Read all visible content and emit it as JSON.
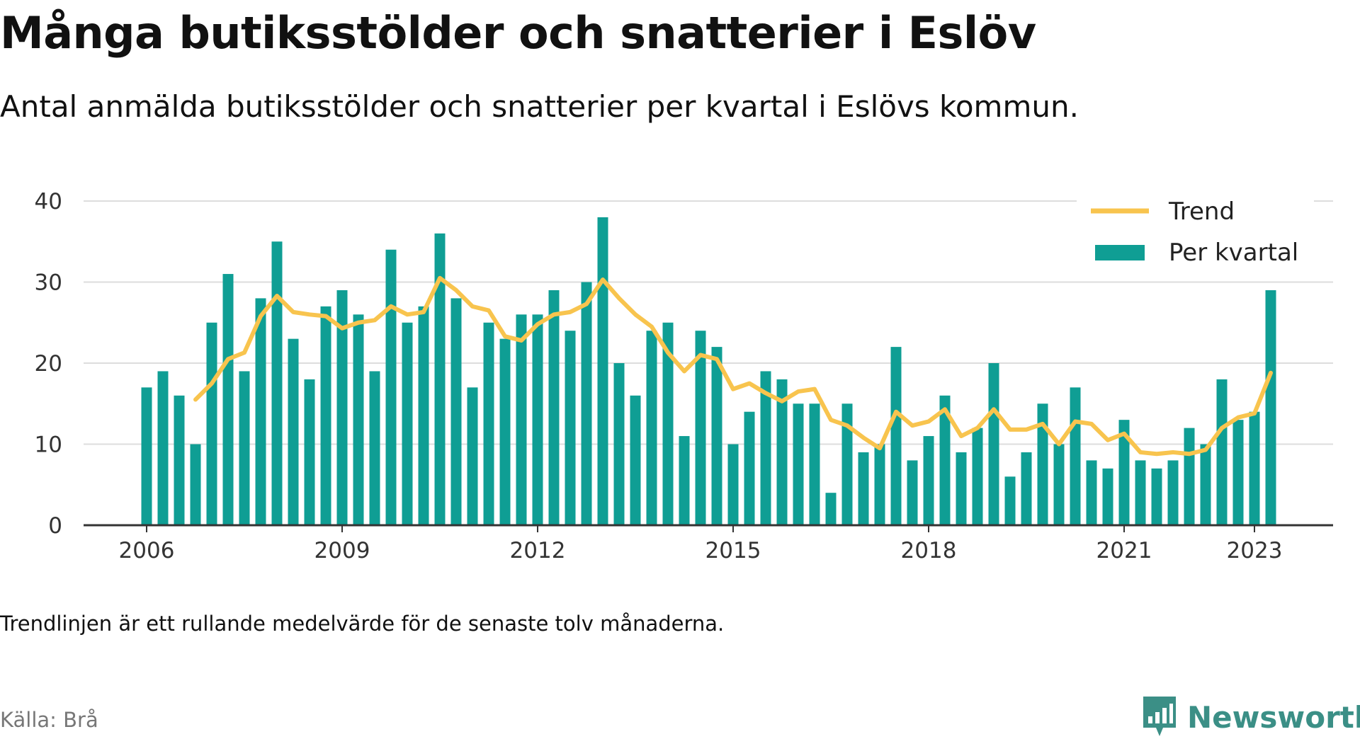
{
  "title": "Många butiksstölder och snatterier i Eslöv",
  "subtitle": "Antal anmälda butiksstölder och snatterier per kvartal i Eslövs kommun.",
  "note": "Trendlinjen är ett rullande medelvärde för de senaste tolv månaderna.",
  "source": "Källa: Brå",
  "logo": {
    "text": "Newsworthy",
    "icon": "bar-chart-icon"
  },
  "colors": {
    "bar": "#0f9e94",
    "trend": "#f8c44e",
    "grid": "#dddddd",
    "axis": "#333333",
    "logo": "#3b8f86"
  },
  "chart_data": {
    "type": "bar",
    "ylim": [
      0,
      40
    ],
    "yticks": [
      0,
      10,
      20,
      30,
      40
    ],
    "xticks": [
      "2006",
      "2009",
      "2012",
      "2015",
      "2018",
      "2021",
      "2023"
    ],
    "grid": true,
    "legend_position": "top-right",
    "legend": [
      {
        "label": "Trend",
        "kind": "line"
      },
      {
        "label": "Per kvartal",
        "kind": "bar"
      }
    ],
    "categories": [
      "2006 Q1",
      "2006 Q2",
      "2006 Q3",
      "2006 Q4",
      "2007 Q1",
      "2007 Q2",
      "2007 Q3",
      "2007 Q4",
      "2008 Q1",
      "2008 Q2",
      "2008 Q3",
      "2008 Q4",
      "2009 Q1",
      "2009 Q2",
      "2009 Q3",
      "2009 Q4",
      "2010 Q1",
      "2010 Q2",
      "2010 Q3",
      "2010 Q4",
      "2011 Q1",
      "2011 Q2",
      "2011 Q3",
      "2011 Q4",
      "2012 Q1",
      "2012 Q2",
      "2012 Q3",
      "2012 Q4",
      "2013 Q1",
      "2013 Q2",
      "2013 Q3",
      "2013 Q4",
      "2014 Q1",
      "2014 Q2",
      "2014 Q3",
      "2014 Q4",
      "2015 Q1",
      "2015 Q2",
      "2015 Q3",
      "2015 Q4",
      "2016 Q1",
      "2016 Q2",
      "2016 Q3",
      "2016 Q4",
      "2017 Q1",
      "2017 Q2",
      "2017 Q3",
      "2017 Q4",
      "2018 Q1",
      "2018 Q2",
      "2018 Q3",
      "2018 Q4",
      "2019 Q1",
      "2019 Q2",
      "2019 Q3",
      "2019 Q4",
      "2020 Q1",
      "2020 Q2",
      "2020 Q3",
      "2020 Q4",
      "2021 Q1",
      "2021 Q2",
      "2021 Q3",
      "2021 Q4",
      "2022 Q1",
      "2022 Q2",
      "2022 Q3",
      "2022 Q4",
      "2023 Q1",
      "2023 Q2"
    ],
    "series": [
      {
        "name": "Per kvartal",
        "type": "bar",
        "values": [
          17,
          19,
          16,
          10,
          25,
          31,
          19,
          28,
          35,
          23,
          18,
          27,
          29,
          26,
          19,
          34,
          25,
          27,
          36,
          28,
          17,
          25,
          23,
          26,
          26,
          29,
          24,
          30,
          38,
          20,
          16,
          24,
          25,
          11,
          24,
          22,
          10,
          14,
          19,
          18,
          15,
          15,
          4,
          15,
          9,
          10,
          22,
          8,
          11,
          16,
          9,
          12,
          20,
          6,
          9,
          15,
          10,
          17,
          8,
          7,
          13,
          8,
          7,
          8,
          12,
          10,
          18,
          13,
          14,
          29
        ]
      },
      {
        "name": "Trend",
        "type": "line",
        "values": [
          null,
          null,
          null,
          15.5,
          17.5,
          20.5,
          21.3,
          25.8,
          28.3,
          26.3,
          26.0,
          25.8,
          24.3,
          25.0,
          25.3,
          27.0,
          26.0,
          26.3,
          30.5,
          29.0,
          27.0,
          26.5,
          23.3,
          22.8,
          24.8,
          26.0,
          26.3,
          27.3,
          30.3,
          28.0,
          26.0,
          24.5,
          21.3,
          19.0,
          21.0,
          20.5,
          16.8,
          17.5,
          16.3,
          15.3,
          16.5,
          16.8,
          13.0,
          12.3,
          10.8,
          9.5,
          14.0,
          12.3,
          12.8,
          14.3,
          11.0,
          12.0,
          14.3,
          11.8,
          11.8,
          12.5,
          10.0,
          12.8,
          12.5,
          10.5,
          11.3,
          9.0,
          8.8,
          9.0,
          8.8,
          9.3,
          12.0,
          13.3,
          13.8,
          18.8
        ]
      }
    ]
  }
}
